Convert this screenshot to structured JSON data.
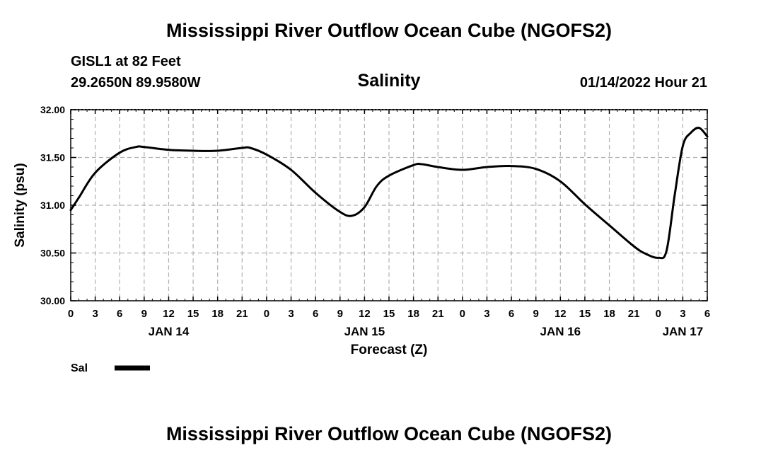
{
  "header": {
    "title": "Mississippi River Outflow Ocean Cube (NGOFS2)",
    "station": "GISL1 at 82 Feet",
    "coordinates": "29.2650N  89.9580W",
    "subtitle": "Salinity",
    "datetime": "01/14/2022 Hour 21"
  },
  "footer": {
    "title": "Mississippi River Outflow Ocean Cube (NGOFS2)"
  },
  "chart_data": {
    "type": "line",
    "title": "Salinity",
    "xlabel": "Forecast (Z)",
    "ylabel": "Salinity (psu)",
    "ylim": [
      30.0,
      32.0
    ],
    "yticks": [
      30.0,
      30.5,
      31.0,
      31.5,
      32.0
    ],
    "ytick_labels": [
      "30.00",
      "30.50",
      "31.00",
      "31.50",
      "32.00"
    ],
    "xlim": [
      0,
      78
    ],
    "xticks": [
      0,
      3,
      6,
      9,
      12,
      15,
      18,
      21,
      24,
      27,
      30,
      33,
      36,
      39,
      42,
      45,
      48,
      51,
      54,
      57,
      60,
      63,
      66,
      69,
      72,
      75,
      78
    ],
    "xtick_labels": [
      "0",
      "3",
      "6",
      "9",
      "12",
      "15",
      "18",
      "21",
      "0",
      "3",
      "6",
      "9",
      "12",
      "15",
      "18",
      "21",
      "0",
      "3",
      "6",
      "9",
      "12",
      "15",
      "18",
      "21",
      "0",
      "3",
      "6"
    ],
    "date_labels": [
      {
        "label": "JAN 14",
        "hour": 12
      },
      {
        "label": "JAN 15",
        "hour": 36
      },
      {
        "label": "JAN 16",
        "hour": 60
      },
      {
        "label": "JAN 17",
        "hour": 75
      }
    ],
    "grid": true,
    "legend": "bottom-left",
    "series": [
      {
        "name": "Sal",
        "color": "#000000",
        "x": [
          0,
          1,
          3,
          6,
          8,
          9,
          12,
          15,
          18,
          21,
          22,
          24,
          27,
          30,
          33,
          34.5,
          36,
          37.5,
          39,
          42,
          43,
          45,
          48,
          51,
          54,
          57,
          60,
          63,
          66,
          69,
          70.5,
          72,
          73,
          74,
          75,
          76,
          77,
          78
        ],
        "values": [
          30.95,
          31.08,
          31.34,
          31.55,
          31.61,
          31.61,
          31.58,
          31.57,
          31.57,
          31.6,
          31.6,
          31.53,
          31.37,
          31.13,
          30.93,
          30.89,
          30.98,
          31.2,
          31.31,
          31.42,
          31.43,
          31.4,
          31.37,
          31.4,
          31.41,
          31.38,
          31.25,
          31.01,
          30.79,
          30.57,
          30.49,
          30.45,
          30.52,
          31.1,
          31.62,
          31.76,
          31.81,
          31.72
        ]
      }
    ]
  }
}
